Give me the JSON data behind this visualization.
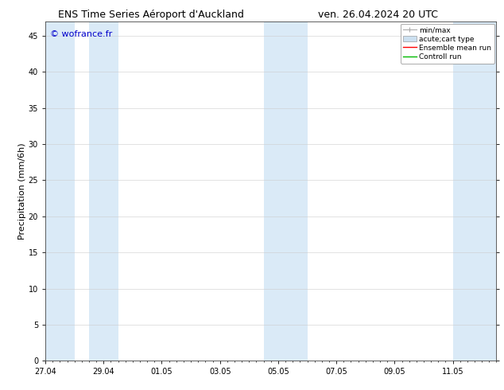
{
  "title_left": "ENS Time Series Aéroport d'Auckland",
  "title_right": "ven. 26.04.2024 20 UTC",
  "ylabel": "Precipitation (mm/6h)",
  "watermark": "© wofrance.fr",
  "watermark_color": "#0000cc",
  "ylim": [
    0,
    47
  ],
  "yticks": [
    0,
    5,
    10,
    15,
    20,
    25,
    30,
    35,
    40,
    45
  ],
  "xlim": [
    0,
    15.5
  ],
  "xtick_labels": [
    "27.04",
    "29.04",
    "01.05",
    "03.05",
    "05.05",
    "07.05",
    "09.05",
    "11.05"
  ],
  "xtick_positions_days": [
    0,
    2,
    4,
    6,
    8,
    10,
    12,
    14
  ],
  "background_color": "#ffffff",
  "plot_bg_color": "#ffffff",
  "shaded_bands": [
    [
      0.0,
      1.0
    ],
    [
      1.5,
      2.5
    ],
    [
      7.5,
      9.0
    ],
    [
      14.0,
      15.5
    ]
  ],
  "band_color": "#daeaf7",
  "legend_labels": [
    "min/max",
    "acute;cart type",
    "Ensemble mean run",
    "Controll run"
  ],
  "minmax_color": "#aaaaaa",
  "band_legend_color": "#cce0f0",
  "ensemble_color": "#ff0000",
  "control_color": "#00bb00",
  "title_fontsize": 9,
  "tick_fontsize": 7,
  "ylabel_fontsize": 8,
  "watermark_fontsize": 8,
  "legend_fontsize": 6.5
}
